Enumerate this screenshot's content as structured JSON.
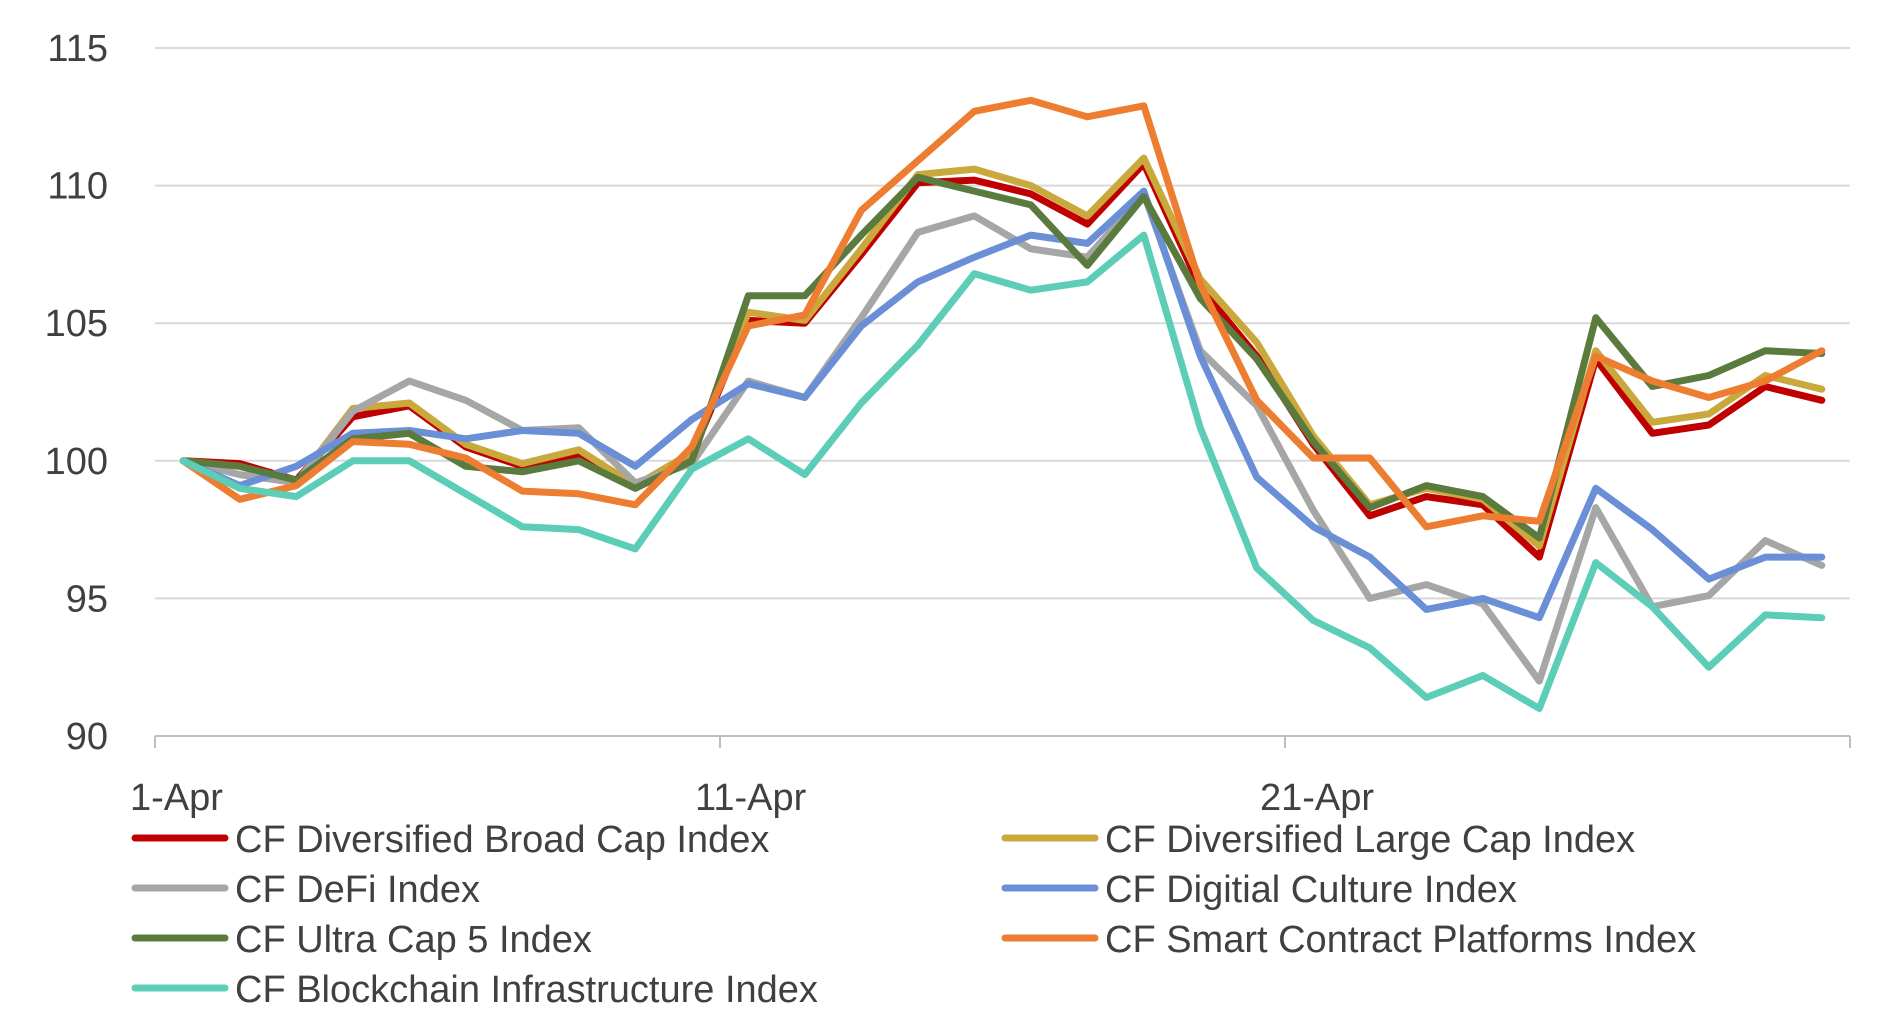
{
  "chart_data": {
    "type": "line",
    "title": "",
    "xlabel": "",
    "ylabel": "",
    "ylim": [
      90,
      115
    ],
    "yticks": [
      "90",
      "95",
      "100",
      "105",
      "110",
      "115"
    ],
    "xtick_labels": [
      "1-Apr",
      "11-Apr",
      "21-Apr"
    ],
    "grid": "horizontal",
    "legend_position": "bottom",
    "x": [
      "1-Apr",
      "2-Apr",
      "3-Apr",
      "4-Apr",
      "5-Apr",
      "6-Apr",
      "7-Apr",
      "8-Apr",
      "9-Apr",
      "10-Apr",
      "11-Apr",
      "12-Apr",
      "13-Apr",
      "14-Apr",
      "15-Apr",
      "16-Apr",
      "17-Apr",
      "18-Apr",
      "19-Apr",
      "20-Apr",
      "21-Apr",
      "22-Apr",
      "23-Apr",
      "24-Apr",
      "25-Apr",
      "26-Apr",
      "27-Apr",
      "28-Apr",
      "29-Apr",
      "30-Apr"
    ],
    "series": [
      {
        "name": "CF Diversified Broad Cap Index",
        "color": "#c00000",
        "values": [
          100.0,
          99.9,
          99.3,
          101.6,
          102.0,
          100.5,
          99.8,
          100.2,
          99.1,
          100.2,
          105.1,
          105.0,
          107.5,
          110.1,
          110.2,
          109.7,
          108.6,
          110.8,
          106.3,
          103.8,
          100.6,
          98.0,
          98.7,
          98.4,
          96.5,
          103.7,
          101.0,
          101.3,
          102.7,
          102.2
        ]
      },
      {
        "name": "CF Diversified Large Cap Index",
        "color": "#c9a83c",
        "values": [
          100.0,
          99.8,
          99.2,
          101.9,
          102.1,
          100.6,
          99.9,
          100.4,
          99.1,
          100.3,
          105.4,
          105.1,
          107.7,
          110.4,
          110.6,
          110.0,
          108.9,
          111.0,
          106.6,
          104.3,
          100.9,
          98.4,
          99.0,
          98.6,
          96.9,
          104.0,
          101.4,
          101.7,
          103.1,
          102.6
        ]
      },
      {
        "name": "CF DeFi Index",
        "color": "#a6a6a6",
        "values": [
          100.0,
          99.5,
          99.2,
          101.8,
          102.9,
          102.2,
          101.1,
          101.2,
          99.2,
          99.9,
          102.9,
          102.3,
          105.2,
          108.3,
          108.9,
          107.7,
          107.4,
          109.7,
          104.0,
          102.0,
          98.2,
          95.0,
          95.5,
          94.8,
          92.0,
          98.3,
          94.7,
          95.1,
          97.1,
          96.2
        ]
      },
      {
        "name": "CF Digitial Culture Index",
        "color": "#6a8fd6",
        "values": [
          100.0,
          99.1,
          99.8,
          101.0,
          101.1,
          100.8,
          101.1,
          101.0,
          99.8,
          101.5,
          102.8,
          102.3,
          104.9,
          106.5,
          107.4,
          108.2,
          107.9,
          109.8,
          103.8,
          99.4,
          97.6,
          96.5,
          94.6,
          95.0,
          94.3,
          99.0,
          97.5,
          95.7,
          96.5,
          96.5
        ]
      },
      {
        "name": "CF Ultra Cap 5 Index",
        "color": "#5a7a3e",
        "values": [
          100.0,
          99.8,
          99.3,
          100.8,
          101.0,
          99.8,
          99.6,
          100.0,
          99.0,
          100.0,
          106.0,
          106.0,
          108.2,
          110.3,
          109.8,
          109.3,
          107.1,
          109.6,
          105.9,
          103.7,
          100.7,
          98.3,
          99.1,
          98.7,
          97.2,
          105.2,
          102.7,
          103.1,
          104.0,
          103.9
        ]
      },
      {
        "name": "CF Smart Contract Platforms Index",
        "color": "#ed7d31",
        "values": [
          100.0,
          98.6,
          99.1,
          100.7,
          100.6,
          100.1,
          98.9,
          98.8,
          98.4,
          100.5,
          104.9,
          105.3,
          109.1,
          110.9,
          112.7,
          113.1,
          112.5,
          112.9,
          106.4,
          102.2,
          100.1,
          100.1,
          97.6,
          98.0,
          97.8,
          103.8,
          102.9,
          102.3,
          102.9,
          104.0
        ]
      },
      {
        "name": "CF Blockchain Infrastructure Index",
        "color": "#5ccdb7",
        "values": [
          100.0,
          99.0,
          98.7,
          100.0,
          100.0,
          98.8,
          97.6,
          97.5,
          96.8,
          99.7,
          100.8,
          99.5,
          102.1,
          104.2,
          106.8,
          106.2,
          106.5,
          108.2,
          101.2,
          96.1,
          94.2,
          93.2,
          91.4,
          92.2,
          91.0,
          96.3,
          94.7,
          92.5,
          94.4,
          94.3
        ]
      }
    ]
  }
}
